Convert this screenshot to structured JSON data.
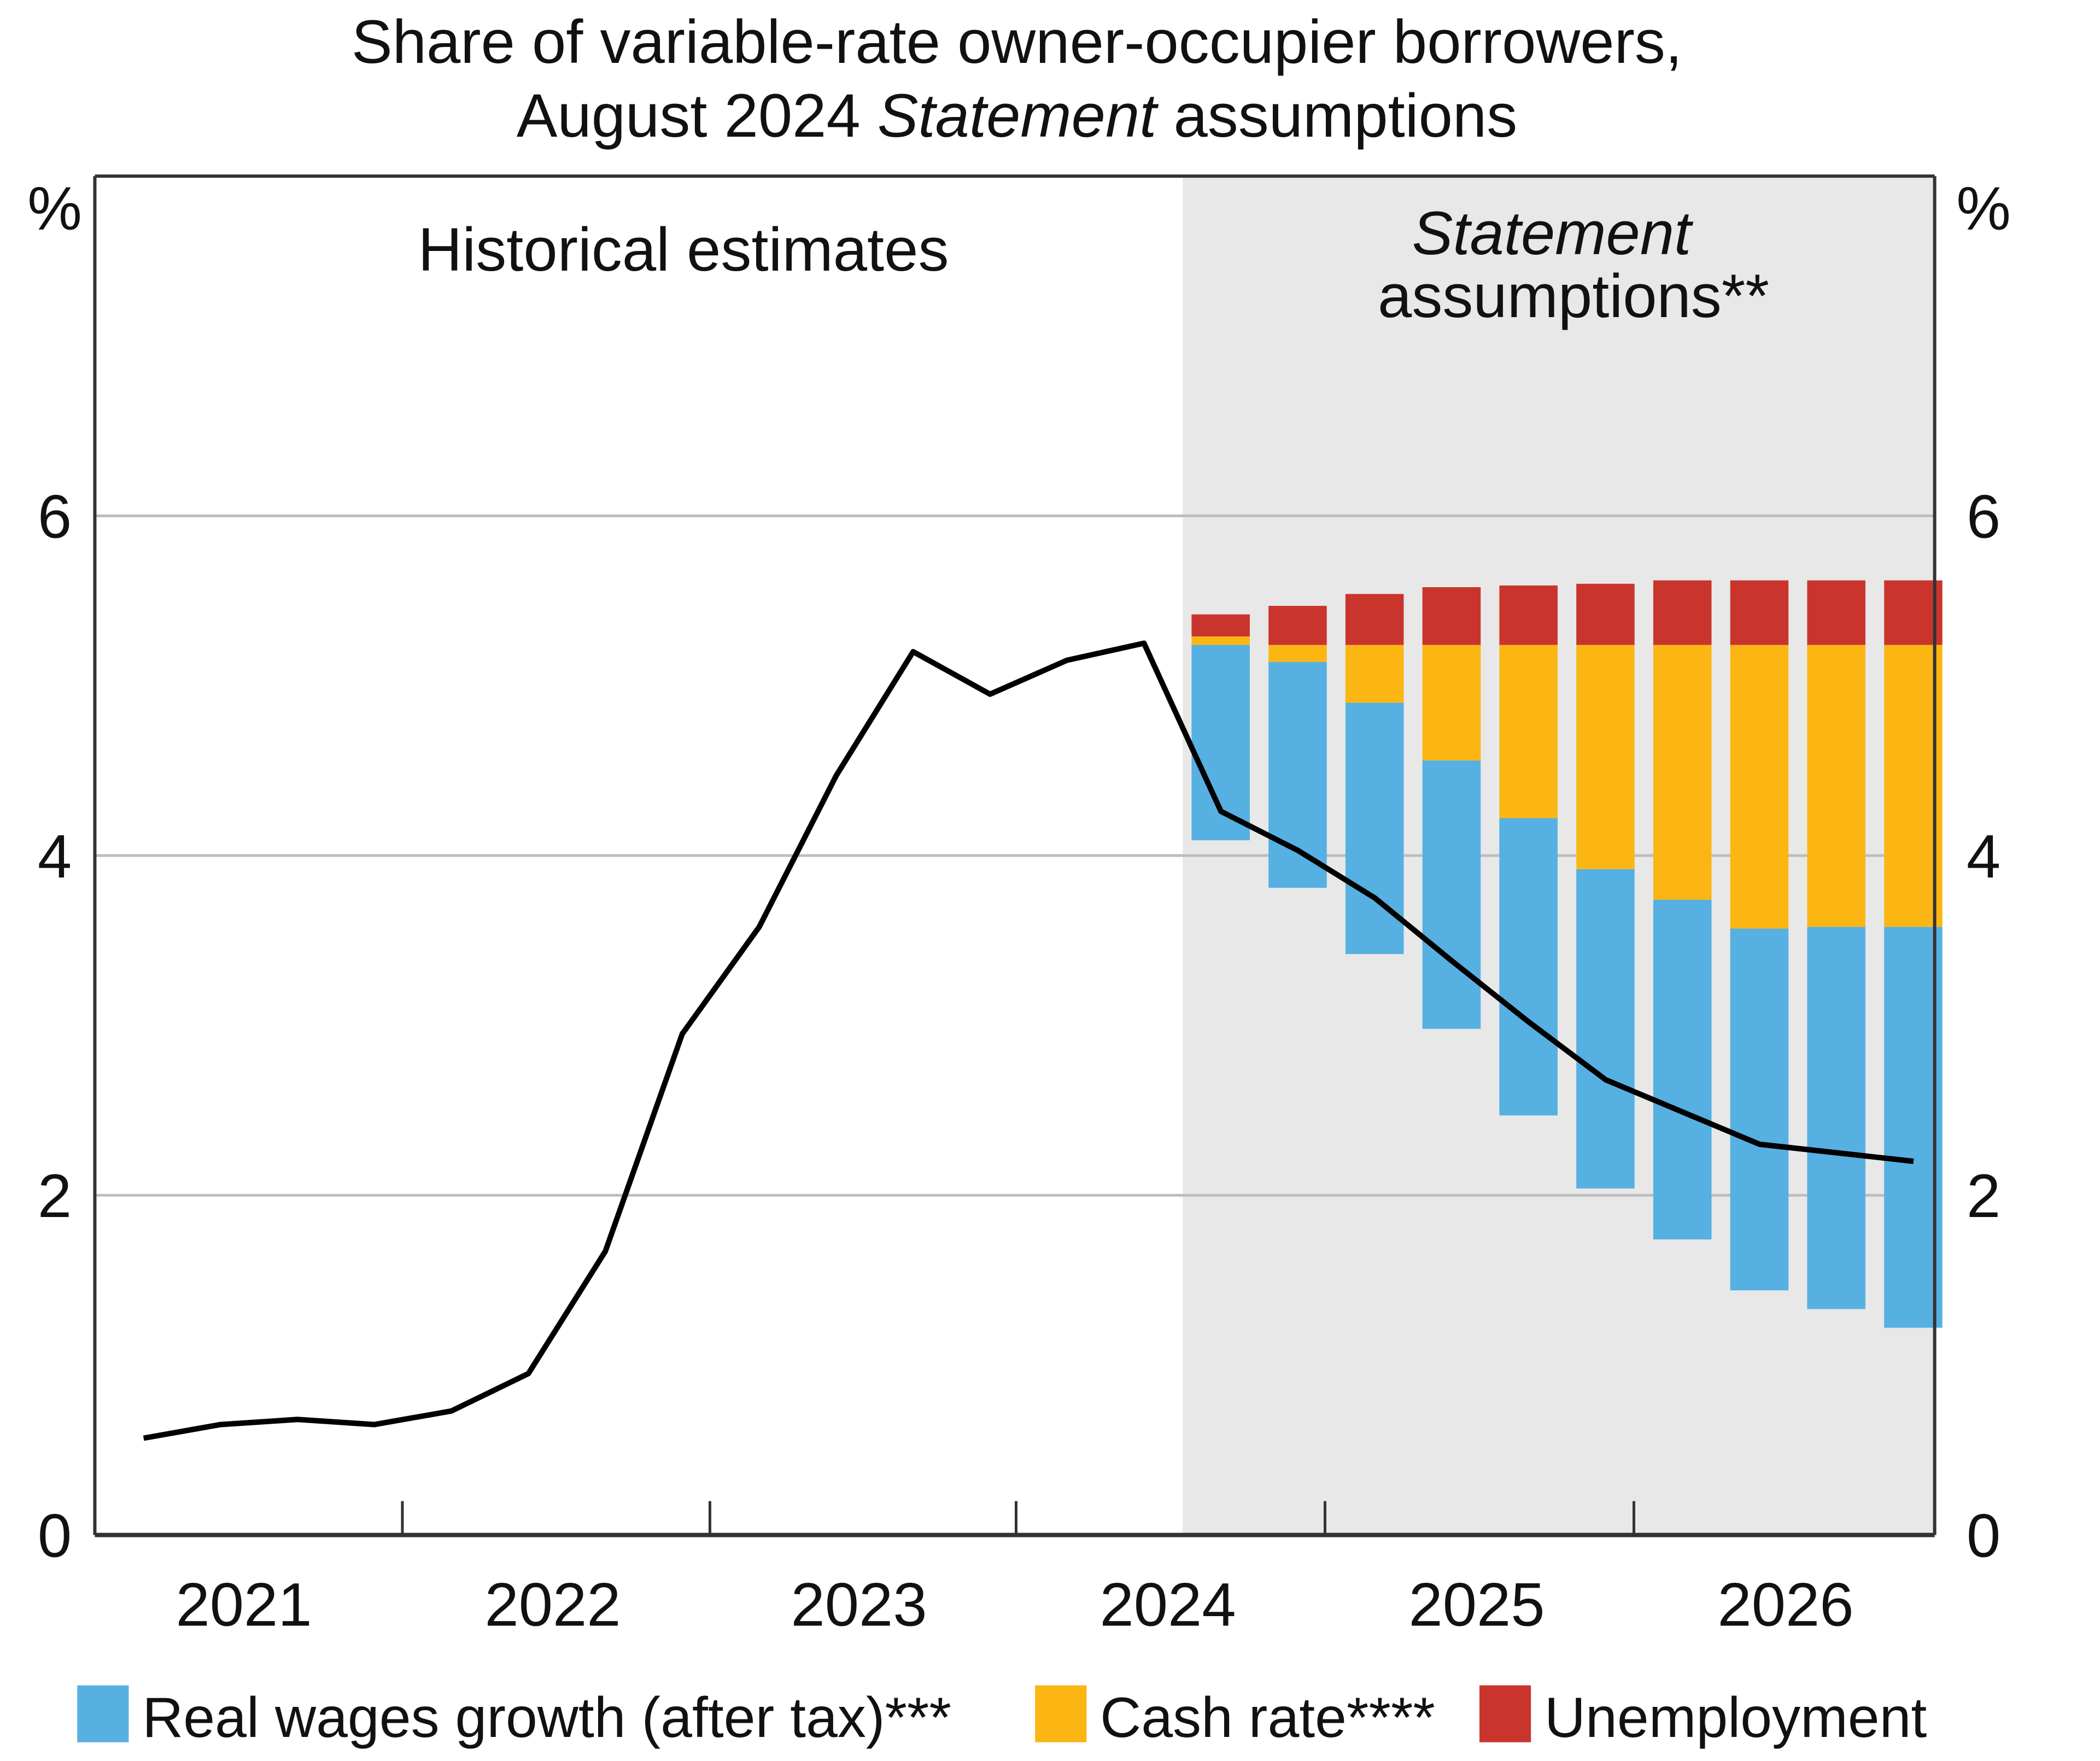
{
  "chart_data": {
    "type": "bar",
    "title": [
      "Share of variable-rate owner-occupier borrowers,",
      "August 2024 Statement assumptions"
    ],
    "title_italic_word": "Statement",
    "y_unit_left": "%",
    "y_unit_right": "%",
    "ylim": [
      0,
      8
    ],
    "yticks": [
      0,
      2,
      4,
      6
    ],
    "ytick_labels": [
      "0",
      "2",
      "4",
      "6"
    ],
    "grid": true,
    "x_year_labels": [
      "2021",
      "2022",
      "2023",
      "2024",
      "2025",
      "2026"
    ],
    "annotations": {
      "historical": "Historical estimates",
      "statement_line1": "Statement",
      "statement_line2": "assumptions**"
    },
    "line_series": {
      "name": "Historical / projected share",
      "values": [
        0.57,
        0.65,
        0.68,
        0.65,
        0.73,
        0.95,
        1.67,
        2.95,
        3.58,
        4.47,
        5.2,
        4.95,
        5.15,
        5.25,
        4.26,
        4.03,
        3.75,
        3.38,
        3.02,
        2.68,
        2.49,
        2.3,
        2.25,
        2.2
      ]
    },
    "bar_series": {
      "bottom": [
        4.09,
        3.81,
        3.42,
        2.98,
        2.47,
        2.04,
        1.74,
        1.44,
        1.33,
        1.22
      ],
      "series": [
        {
          "name": "Real wages growth (after tax)***",
          "color": "#56b0e2",
          "top": [
            5.24,
            5.14,
            4.9,
            4.56,
            4.22,
            3.92,
            3.74,
            3.57,
            3.58,
            3.58
          ]
        },
        {
          "name": "Cash rate****",
          "color": "#fbb614",
          "top": [
            5.29,
            5.24,
            5.24,
            5.24,
            5.24,
            5.24,
            5.24,
            5.24,
            5.24,
            5.24
          ]
        },
        {
          "name": "Unemployment",
          "color": "#c9352d",
          "top": [
            5.42,
            5.47,
            5.54,
            5.58,
            5.59,
            5.6,
            5.62,
            5.62,
            5.62,
            5.62
          ]
        }
      ]
    },
    "legend": {
      "position": "bottom",
      "items": [
        {
          "label": "Real wages growth (after tax)***",
          "color": "#56b0e2"
        },
        {
          "label": "Cash rate****",
          "color": "#fbb614"
        },
        {
          "label": "Unemployment",
          "color": "#c9352d"
        }
      ]
    },
    "shading_color": "#e8e8e8"
  }
}
